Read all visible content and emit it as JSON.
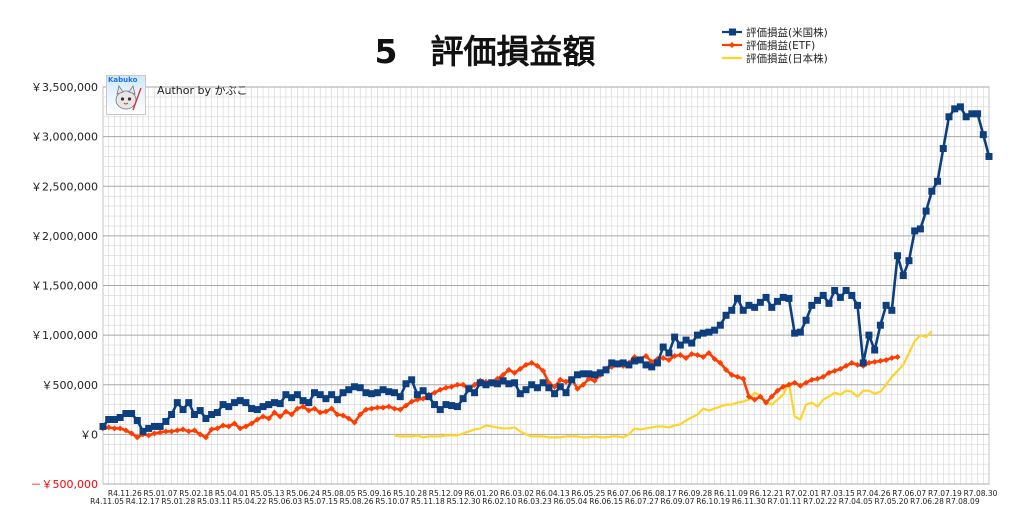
{
  "chart_data": {
    "type": "line",
    "title": "5　評価損益額",
    "legend_position": "top-right",
    "grid": true,
    "ylim": [
      -500000,
      3500000
    ],
    "yticks": [
      {
        "value": 3500000,
        "label": "￥3,500,000"
      },
      {
        "value": 3000000,
        "label": "￥3,000,000"
      },
      {
        "value": 2500000,
        "label": "￥2,500,000"
      },
      {
        "value": 2000000,
        "label": "￥2,000,000"
      },
      {
        "value": 1500000,
        "label": "￥1,500,000"
      },
      {
        "value": 1000000,
        "label": "￥1,000,000"
      },
      {
        "value": 500000,
        "label": "￥500,000"
      },
      {
        "value": 0,
        "label": "￥0"
      },
      {
        "value": -500000,
        "label": "－￥500,000"
      }
    ],
    "x_labels_top": [
      "R4.11.26",
      "R5.01.07",
      "R5.02.18",
      "R5.04.01",
      "R5.05.13",
      "R5.06.24",
      "R5.08.05",
      "R5.09.16",
      "R5.10.28",
      "R5.12.09",
      "R6.01.20",
      "R6.03.02",
      "R6.04.13",
      "R6.05.25",
      "R6.07.06",
      "R6.08.17",
      "R6.09.28",
      "R6.11.09",
      "R6.12.21",
      "R7.02.01",
      "R7.03.15",
      "R7.04.26",
      "R7.06.07",
      "R7.07.19",
      "R7.08.30"
    ],
    "x_labels_bottom": [
      "R4.11.05",
      "R4.12.17",
      "R5.01.28",
      "R5.03.11",
      "R5.04.22",
      "R5.06.03",
      "R5.07.15",
      "R5.08.26",
      "R5.10.07",
      "R5.11.18",
      "R5.12.30",
      "R6.02.10",
      "R6.03.23",
      "R6.05.04",
      "R6.06.15",
      "R6.07.27",
      "R6.09.07",
      "R6.10.19",
      "R6.11.30",
      "R7.01.11",
      "R7.02.22",
      "R7.04.05",
      "R7.05.20",
      "R7.06.28",
      "R7.08.09"
    ],
    "series": [
      {
        "name": "評価損益(米国株)",
        "color": "#0d3f7f",
        "marker": "square",
        "values": [
          80000,
          150000,
          150000,
          170000,
          210000,
          210000,
          140000,
          30000,
          60000,
          80000,
          80000,
          130000,
          200000,
          320000,
          250000,
          320000,
          200000,
          240000,
          160000,
          200000,
          220000,
          300000,
          280000,
          320000,
          340000,
          320000,
          260000,
          250000,
          280000,
          300000,
          320000,
          310000,
          400000,
          370000,
          400000,
          340000,
          320000,
          420000,
          400000,
          360000,
          400000,
          350000,
          420000,
          450000,
          480000,
          470000,
          420000,
          410000,
          420000,
          450000,
          430000,
          420000,
          380000,
          510000,
          550000,
          400000,
          440000,
          380000,
          300000,
          250000,
          300000,
          290000,
          280000,
          360000,
          460000,
          420000,
          520000,
          500000,
          520000,
          510000,
          540000,
          510000,
          520000,
          410000,
          450000,
          500000,
          470000,
          520000,
          470000,
          410000,
          480000,
          420000,
          550000,
          600000,
          610000,
          610000,
          600000,
          620000,
          650000,
          720000,
          710000,
          720000,
          700000,
          740000,
          750000,
          700000,
          680000,
          720000,
          880000,
          820000,
          980000,
          900000,
          950000,
          920000,
          1000000,
          1020000,
          1030000,
          1050000,
          1100000,
          1200000,
          1250000,
          1370000,
          1250000,
          1300000,
          1280000,
          1330000,
          1380000,
          1280000,
          1340000,
          1380000,
          1370000,
          1020000,
          1030000,
          1150000,
          1300000,
          1350000,
          1400000,
          1320000,
          1450000,
          1380000,
          1450000,
          1400000,
          1300000,
          720000,
          1000000,
          850000,
          1100000,
          1300000,
          1250000,
          1800000,
          1600000,
          1750000,
          2050000,
          2070000,
          2250000,
          2450000,
          2550000,
          2880000,
          3200000,
          3280000,
          3300000,
          3200000,
          3230000,
          3230000,
          3020000,
          2800000
        ]
      },
      {
        "name": "評価損益(ETF)",
        "color": "#ff3d00",
        "marker": "diamond",
        "values": [
          60000,
          70000,
          60000,
          60000,
          40000,
          10000,
          -30000,
          0,
          -10000,
          10000,
          20000,
          30000,
          30000,
          40000,
          50000,
          30000,
          40000,
          0,
          -30000,
          50000,
          60000,
          90000,
          80000,
          110000,
          60000,
          80000,
          110000,
          150000,
          180000,
          160000,
          220000,
          180000,
          230000,
          200000,
          260000,
          280000,
          240000,
          260000,
          220000,
          230000,
          260000,
          200000,
          190000,
          160000,
          120000,
          200000,
          250000,
          260000,
          270000,
          270000,
          280000,
          260000,
          250000,
          290000,
          330000,
          350000,
          360000,
          400000,
          420000,
          450000,
          470000,
          480000,
          500000,
          500000,
          450000,
          500000,
          540000,
          530000,
          510000,
          560000,
          600000,
          650000,
          620000,
          660000,
          700000,
          720000,
          690000,
          640000,
          520000,
          480000,
          550000,
          530000,
          560000,
          460000,
          500000,
          560000,
          540000,
          600000,
          660000,
          680000,
          700000,
          690000,
          720000,
          780000,
          760000,
          790000,
          730000,
          760000,
          770000,
          750000,
          790000,
          800000,
          770000,
          810000,
          800000,
          780000,
          820000,
          760000,
          720000,
          650000,
          600000,
          580000,
          560000,
          380000,
          350000,
          380000,
          320000,
          380000,
          440000,
          480000,
          500000,
          520000,
          490000,
          520000,
          550000,
          560000,
          580000,
          620000,
          640000,
          660000,
          690000,
          720000,
          700000,
          690000,
          720000,
          730000,
          740000,
          750000,
          770000,
          780000
        ]
      },
      {
        "name": "評価損益(日本株)",
        "color": "#ffd42a",
        "marker": "none",
        "values": [
          null,
          null,
          null,
          null,
          null,
          null,
          null,
          null,
          null,
          null,
          null,
          null,
          null,
          null,
          null,
          null,
          null,
          null,
          null,
          null,
          null,
          null,
          null,
          null,
          null,
          null,
          null,
          null,
          null,
          null,
          null,
          null,
          null,
          null,
          null,
          null,
          null,
          null,
          null,
          null,
          null,
          null,
          null,
          null,
          null,
          null,
          null,
          null,
          null,
          null,
          null,
          -10000,
          -20000,
          -20000,
          -20000,
          -10000,
          -30000,
          -20000,
          -20000,
          -20000,
          -10000,
          -10000,
          -10000,
          10000,
          30000,
          50000,
          60000,
          90000,
          80000,
          70000,
          60000,
          60000,
          70000,
          30000,
          0,
          -20000,
          -20000,
          -20000,
          -30000,
          -30000,
          -30000,
          -20000,
          -20000,
          -20000,
          -30000,
          -30000,
          -20000,
          -30000,
          -30000,
          -20000,
          -20000,
          -30000,
          0,
          60000,
          50000,
          60000,
          70000,
          80000,
          80000,
          70000,
          90000,
          100000,
          140000,
          170000,
          200000,
          260000,
          240000,
          260000,
          280000,
          300000,
          300000,
          320000,
          330000,
          350000,
          420000,
          390000,
          320000,
          300000,
          350000,
          400000,
          520000,
          180000,
          150000,
          300000,
          320000,
          280000,
          350000,
          380000,
          420000,
          400000,
          440000,
          430000,
          380000,
          440000,
          440000,
          410000,
          430000,
          500000,
          580000,
          640000,
          700000,
          820000,
          940000,
          1000000,
          980000,
          1040000
        ]
      }
    ]
  },
  "author": {
    "label": "Author by かぶこ",
    "badge": "Kabuko"
  }
}
